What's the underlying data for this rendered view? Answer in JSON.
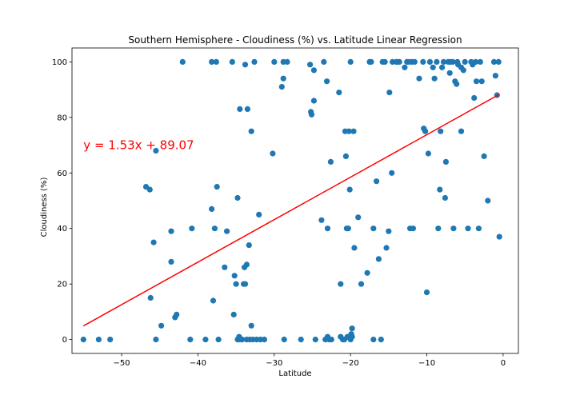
{
  "chart_data": {
    "type": "scatter",
    "title": "Southern Hemisphere - Cloudiness (%) vs. Latitude Linear Regression",
    "xlabel": "Latitude",
    "ylabel": "Cloudiness (%)",
    "xlim": [
      -56.5,
      2
    ],
    "ylim": [
      -5,
      105
    ],
    "xticks": [
      -50,
      -40,
      -30,
      -20,
      -10,
      0
    ],
    "yticks": [
      0,
      20,
      40,
      60,
      80,
      100
    ],
    "grid": false,
    "marker_color": "#1f77b4",
    "line_color": "#ff0000",
    "regression": {
      "slope": 1.53,
      "intercept": 89.07,
      "x_start": -55,
      "x_end": -0.5,
      "equation": "y = 1.53x + 89.07",
      "equation_x": -55,
      "equation_y": 70
    },
    "points": [
      [
        -55,
        0
      ],
      [
        -53,
        0
      ],
      [
        -51.5,
        0
      ],
      [
        -46.8,
        55
      ],
      [
        -46.3,
        54
      ],
      [
        -46.2,
        15
      ],
      [
        -45.8,
        35
      ],
      [
        -45.5,
        68
      ],
      [
        -45.5,
        0
      ],
      [
        -44.8,
        5
      ],
      [
        -43.5,
        39
      ],
      [
        -43.5,
        28
      ],
      [
        -43.0,
        8
      ],
      [
        -42.8,
        9
      ],
      [
        -42.0,
        100
      ],
      [
        -41.0,
        0
      ],
      [
        -40.8,
        40
      ],
      [
        -39.0,
        0
      ],
      [
        -38.2,
        100
      ],
      [
        -38.2,
        47
      ],
      [
        -38.0,
        14
      ],
      [
        -37.8,
        40
      ],
      [
        -37.6,
        100
      ],
      [
        -37.5,
        55
      ],
      [
        -37.3,
        0
      ],
      [
        -36.5,
        26
      ],
      [
        -36.2,
        39
      ],
      [
        -35.5,
        100
      ],
      [
        -35.3,
        9
      ],
      [
        -35.2,
        23
      ],
      [
        -35.0,
        20
      ],
      [
        -34.8,
        51
      ],
      [
        -34.8,
        0
      ],
      [
        -34.6,
        1
      ],
      [
        -34.5,
        0
      ],
      [
        -34.5,
        83
      ],
      [
        -34.2,
        0
      ],
      [
        -34.0,
        20
      ],
      [
        -33.8,
        20
      ],
      [
        -33.9,
        26
      ],
      [
        -33.8,
        99
      ],
      [
        -33.6,
        27
      ],
      [
        -33.6,
        0
      ],
      [
        -33.5,
        83
      ],
      [
        -33.3,
        34
      ],
      [
        -33.2,
        0
      ],
      [
        -33.0,
        5
      ],
      [
        -33.0,
        75
      ],
      [
        -32.8,
        0
      ],
      [
        -32.6,
        100
      ],
      [
        -32.3,
        0
      ],
      [
        -32.0,
        45
      ],
      [
        -31.8,
        0
      ],
      [
        -31.3,
        0
      ],
      [
        -30.2,
        67
      ],
      [
        -30.0,
        100
      ],
      [
        -29.0,
        91
      ],
      [
        -28.8,
        94
      ],
      [
        -28.8,
        100
      ],
      [
        -28.3,
        100
      ],
      [
        -28.7,
        0
      ],
      [
        -26.5,
        0
      ],
      [
        -25.3,
        99
      ],
      [
        -25.2,
        82
      ],
      [
        -25.1,
        81
      ],
      [
        -24.8,
        86
      ],
      [
        -24.8,
        97
      ],
      [
        -24.6,
        0
      ],
      [
        -23.8,
        43
      ],
      [
        -23.5,
        100
      ],
      [
        -23.3,
        0
      ],
      [
        -23.1,
        93
      ],
      [
        -23.0,
        40
      ],
      [
        -23.0,
        1
      ],
      [
        -22.8,
        0
      ],
      [
        -22.6,
        64
      ],
      [
        -22.5,
        0
      ],
      [
        -21.5,
        89
      ],
      [
        -21.3,
        20
      ],
      [
        -21.3,
        1
      ],
      [
        -21.0,
        0
      ],
      [
        -20.8,
        0
      ],
      [
        -20.7,
        75
      ],
      [
        -20.6,
        66
      ],
      [
        -20.5,
        40
      ],
      [
        -20.4,
        1
      ],
      [
        -20.3,
        40
      ],
      [
        -20.2,
        75
      ],
      [
        -20.1,
        54
      ],
      [
        -20.0,
        100
      ],
      [
        -20.0,
        0
      ],
      [
        -19.9,
        2
      ],
      [
        -19.8,
        4
      ],
      [
        -19.8,
        1
      ],
      [
        -19.6,
        75
      ],
      [
        -19.5,
        33
      ],
      [
        -19.0,
        44
      ],
      [
        -18.6,
        20
      ],
      [
        -17.8,
        24
      ],
      [
        -17.5,
        100
      ],
      [
        -17.3,
        100
      ],
      [
        -17.0,
        40
      ],
      [
        -17.0,
        0
      ],
      [
        -16.6,
        57
      ],
      [
        -16.3,
        29
      ],
      [
        -16.0,
        0
      ],
      [
        -15.8,
        100
      ],
      [
        -15.5,
        100
      ],
      [
        -15.3,
        33
      ],
      [
        -15.0,
        39
      ],
      [
        -14.9,
        89
      ],
      [
        -14.6,
        60
      ],
      [
        -14.5,
        100
      ],
      [
        -14.0,
        100
      ],
      [
        -13.9,
        100
      ],
      [
        -13.6,
        100
      ],
      [
        -12.9,
        98
      ],
      [
        -12.6,
        100
      ],
      [
        -12.4,
        100
      ],
      [
        -12.2,
        40
      ],
      [
        -12.0,
        100
      ],
      [
        -11.8,
        40
      ],
      [
        -11.6,
        100
      ],
      [
        -11.0,
        94
      ],
      [
        -10.5,
        100
      ],
      [
        -10.4,
        76
      ],
      [
        -10.2,
        75
      ],
      [
        -10.0,
        17
      ],
      [
        -9.8,
        67
      ],
      [
        -9.6,
        100
      ],
      [
        -9.2,
        98
      ],
      [
        -9.0,
        94
      ],
      [
        -8.7,
        100
      ],
      [
        -8.5,
        40
      ],
      [
        -8.3,
        54
      ],
      [
        -8.2,
        75
      ],
      [
        -8.0,
        98
      ],
      [
        -7.8,
        100
      ],
      [
        -7.6,
        51
      ],
      [
        -7.5,
        64
      ],
      [
        -7.2,
        100
      ],
      [
        -7.0,
        96
      ],
      [
        -6.9,
        100
      ],
      [
        -6.6,
        100
      ],
      [
        -6.5,
        40
      ],
      [
        -6.3,
        93
      ],
      [
        -6.1,
        92
      ],
      [
        -6.0,
        100
      ],
      [
        -5.9,
        99
      ],
      [
        -5.5,
        75
      ],
      [
        -5.5,
        98
      ],
      [
        -5.2,
        97
      ],
      [
        -5.0,
        100
      ],
      [
        -4.6,
        40
      ],
      [
        -4.2,
        100
      ],
      [
        -4.0,
        99
      ],
      [
        -3.8,
        87
      ],
      [
        -3.6,
        100
      ],
      [
        -3.5,
        93
      ],
      [
        -3.2,
        40
      ],
      [
        -3.0,
        100
      ],
      [
        -2.8,
        93
      ],
      [
        -2.5,
        66
      ],
      [
        -2.0,
        50
      ],
      [
        -1.2,
        100
      ],
      [
        -1.0,
        95
      ],
      [
        -0.8,
        88
      ],
      [
        -0.6,
        100
      ],
      [
        -0.5,
        37
      ]
    ]
  }
}
